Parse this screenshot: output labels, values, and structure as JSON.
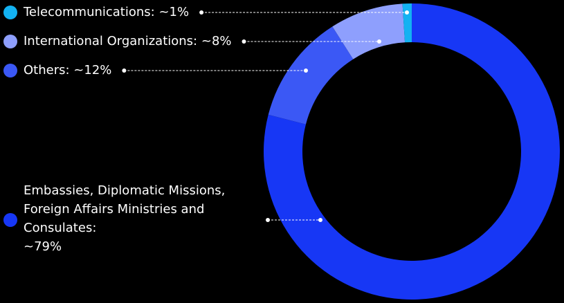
{
  "chart_data": {
    "type": "donut",
    "categories": [
      "Embassies, Diplomatic Missions, Foreign Affairs Ministries and Consulates:",
      "Others:",
      "International Organizations:",
      "Telecommunications:"
    ],
    "values": [
      79,
      12,
      8,
      1
    ],
    "value_labels": [
      "~79%",
      "~12%",
      "~8%",
      "~1%"
    ],
    "colors": [
      "#1737f5",
      "#3b58f5",
      "#8e9ffd",
      "#13b2f2"
    ]
  }
}
